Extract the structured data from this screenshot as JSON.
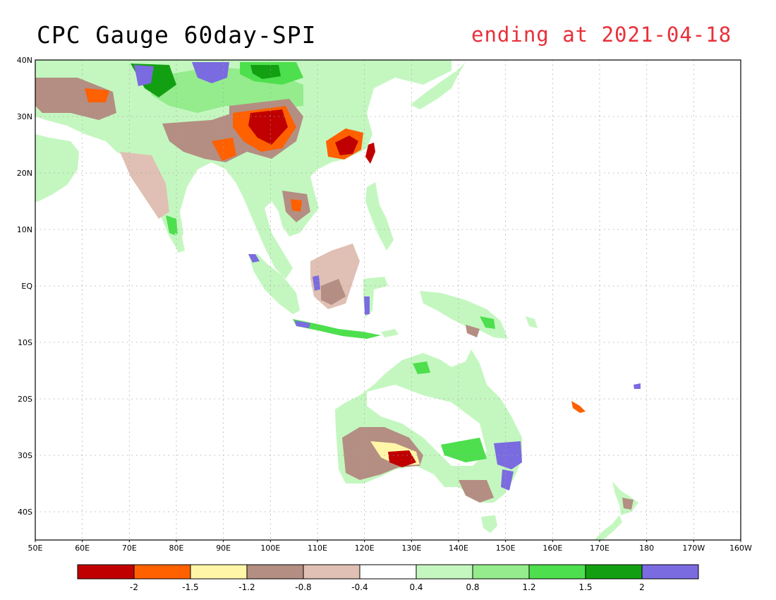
{
  "title": "CPC Gauge 60day-SPI",
  "subtitle": "ending at 2021-04-18",
  "subtitle_color": "#e8303a",
  "map": {
    "lon_range": [
      50,
      200
    ],
    "lat_range": [
      -45,
      40
    ],
    "lon_ticks": [
      {
        "lon": 50,
        "label": "50E"
      },
      {
        "lon": 60,
        "label": "60E"
      },
      {
        "lon": 70,
        "label": "70E"
      },
      {
        "lon": 80,
        "label": "80E"
      },
      {
        "lon": 90,
        "label": "90E"
      },
      {
        "lon": 100,
        "label": "100E"
      },
      {
        "lon": 110,
        "label": "110E"
      },
      {
        "lon": 120,
        "label": "120E"
      },
      {
        "lon": 130,
        "label": "130E"
      },
      {
        "lon": 140,
        "label": "140E"
      },
      {
        "lon": 150,
        "label": "150E"
      },
      {
        "lon": 160,
        "label": "160E"
      },
      {
        "lon": 170,
        "label": "170E"
      },
      {
        "lon": 180,
        "label": "180"
      },
      {
        "lon": 190,
        "label": "170W"
      },
      {
        "lon": 200,
        "label": "160W"
      }
    ],
    "lat_ticks": [
      {
        "lat": 40,
        "label": "40N"
      },
      {
        "lat": 30,
        "label": "30N"
      },
      {
        "lat": 20,
        "label": "20N"
      },
      {
        "lat": 10,
        "label": "10N"
      },
      {
        "lat": 0,
        "label": "EQ"
      },
      {
        "lat": -10,
        "label": "10S"
      },
      {
        "lat": -20,
        "label": "20S"
      },
      {
        "lat": -30,
        "label": "30S"
      },
      {
        "lat": -40,
        "label": "40S"
      }
    ]
  },
  "colorbar": {
    "colors": [
      "#c00000",
      "#ff6000",
      "#fff6a8",
      "#b48e82",
      "#e0c0b4",
      "#ffffff",
      "#c4f7c0",
      "#94ec8c",
      "#4ddf4d",
      "#12a012",
      "#7b6be0"
    ],
    "labels": [
      "-2",
      "-1.5",
      "-1.2",
      "-0.8",
      "-0.4",
      "0.4",
      "0.8",
      "1.2",
      "1.5",
      "2"
    ]
  },
  "colors": {
    "land": "#ffffff",
    "coast": "#000000",
    "dry_extreme": "#c00000",
    "dry_severe": "#ff6000",
    "dry_moderate": "#fff6a8",
    "dry_mild": "#b48e82",
    "dry_slight": "#e0c0b4",
    "wet_slight": "#c4f7c0",
    "wet_mild": "#94ec8c",
    "wet_moderate": "#4ddf4d",
    "wet_severe": "#12a012",
    "wet_extreme": "#7b6be0"
  }
}
